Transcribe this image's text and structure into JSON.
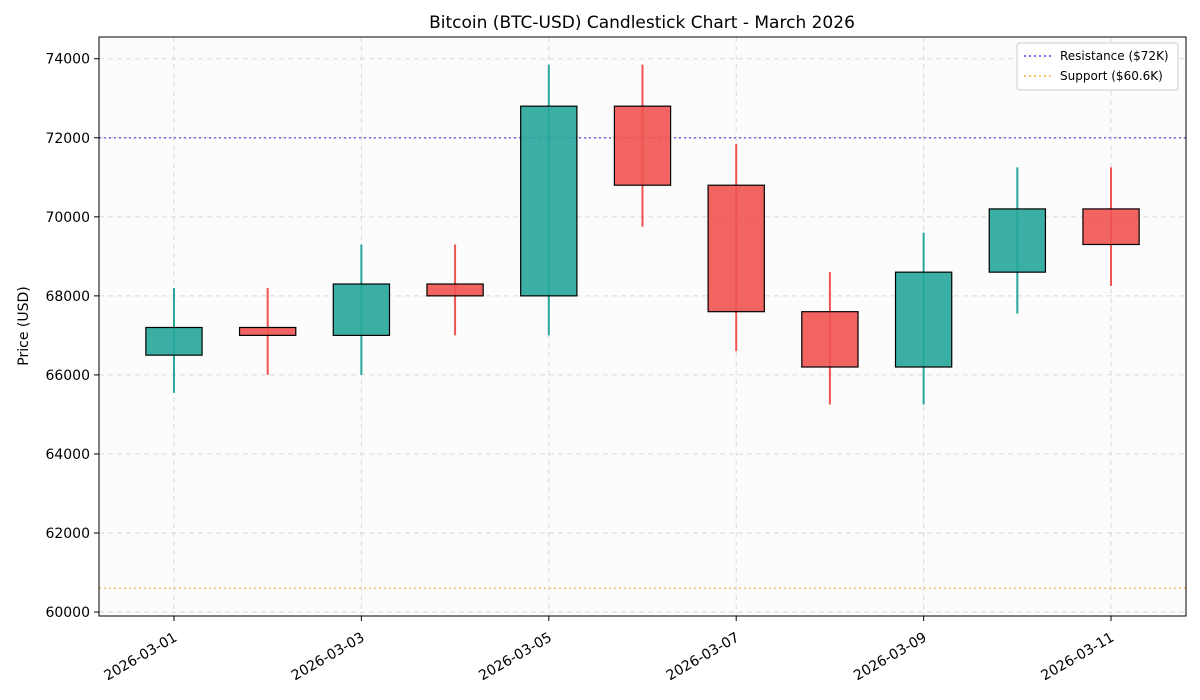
{
  "chart_data": {
    "type": "candlestick",
    "title": "Bitcoin (BTC-USD) Candlestick Chart - March 2026",
    "xlabel": "",
    "ylabel": "Price (USD)",
    "ylim": [
      59900,
      74550
    ],
    "yticks": [
      60000,
      62000,
      64000,
      66000,
      68000,
      70000,
      72000,
      74000
    ],
    "xtick_labels": [
      "2026-03-01",
      "2026-03-03",
      "2026-03-05",
      "2026-03-07",
      "2026-03-09",
      "2026-03-11"
    ],
    "grid": true,
    "legend_position": "top-right",
    "colors": {
      "up": "#26a69a",
      "down": "#ef5350",
      "resistance": "#5b3cf0",
      "support": "#f5b041"
    },
    "candles": [
      {
        "date": "2026-03-01",
        "open": 66500,
        "high": 68200,
        "low": 65550,
        "close": 67200
      },
      {
        "date": "2026-03-02",
        "open": 67200,
        "high": 68200,
        "low": 66000,
        "close": 67000
      },
      {
        "date": "2026-03-03",
        "open": 67000,
        "high": 69300,
        "low": 66000,
        "close": 68300
      },
      {
        "date": "2026-03-04",
        "open": 68300,
        "high": 69300,
        "low": 67000,
        "close": 68000
      },
      {
        "date": "2026-03-05",
        "open": 68000,
        "high": 73850,
        "low": 67000,
        "close": 72800
      },
      {
        "date": "2026-03-06",
        "open": 72800,
        "high": 73850,
        "low": 69750,
        "close": 70800
      },
      {
        "date": "2026-03-07",
        "open": 70800,
        "high": 71850,
        "low": 66600,
        "close": 67600
      },
      {
        "date": "2026-03-08",
        "open": 67600,
        "high": 68600,
        "low": 65250,
        "close": 66200
      },
      {
        "date": "2026-03-09",
        "open": 66200,
        "high": 69600,
        "low": 65250,
        "close": 68600
      },
      {
        "date": "2026-03-10",
        "open": 68600,
        "high": 71250,
        "low": 67550,
        "close": 70200
      },
      {
        "date": "2026-03-11",
        "open": 70200,
        "high": 71250,
        "low": 68250,
        "close": 69300
      }
    ],
    "reference_lines": [
      {
        "name": "Resistance ($72K)",
        "value": 72000,
        "color": "#5b3cf0"
      },
      {
        "name": "Support ($60.6K)",
        "value": 60600,
        "color": "#f5b041"
      }
    ]
  }
}
